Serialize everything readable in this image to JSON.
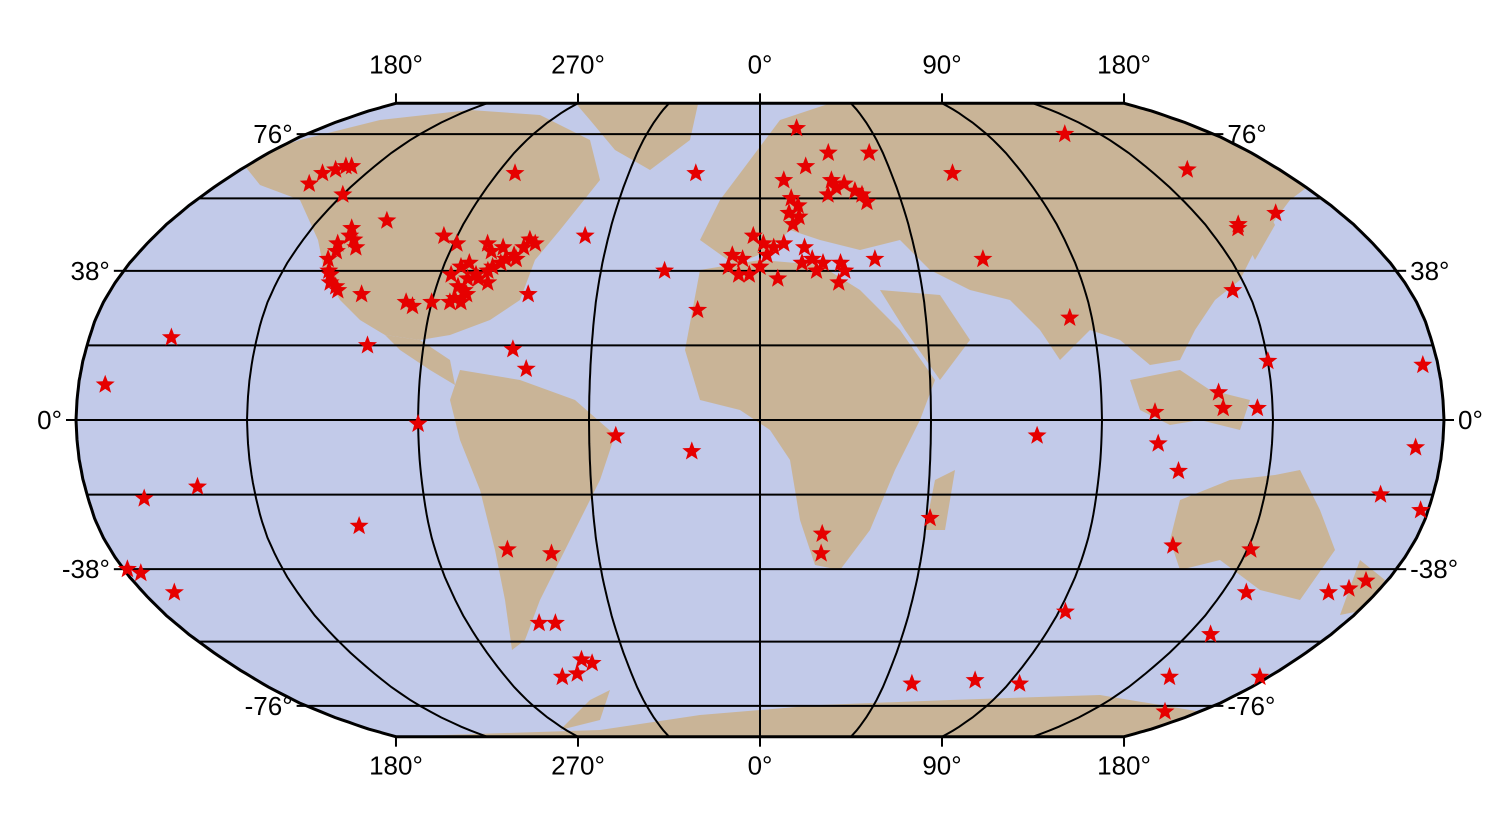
{
  "map": {
    "projection": "Robinson",
    "colors": {
      "ocean": "#c2cae9",
      "land": "#c9b497",
      "graticule": "#000000",
      "marker": "#e60000",
      "frame": "#000000"
    },
    "marker_shape": "star-icon",
    "top_labels": [
      "180°",
      "270°",
      "0°",
      "90°",
      "180°"
    ],
    "bottom_labels": [
      "180°",
      "270°",
      "0°",
      "90°",
      "180°"
    ],
    "left_labels": [
      "76°",
      "38°",
      "0°",
      "-38°",
      "-76°"
    ],
    "right_labels": [
      "76°",
      "38°",
      "0°",
      "-38°",
      "-76°"
    ],
    "stations": [
      {
        "lon": -150,
        "lat": 64
      },
      {
        "lon": -147,
        "lat": 65
      },
      {
        "lon": -145,
        "lat": 66
      },
      {
        "lon": -143,
        "lat": 66
      },
      {
        "lon": -150,
        "lat": 61
      },
      {
        "lon": -135,
        "lat": 58
      },
      {
        "lon": -123,
        "lat": 49
      },
      {
        "lon": -122,
        "lat": 47
      },
      {
        "lon": -124,
        "lat": 45
      },
      {
        "lon": -123,
        "lat": 43
      },
      {
        "lon": -124,
        "lat": 41
      },
      {
        "lon": -122,
        "lat": 38
      },
      {
        "lon": -121,
        "lat": 37
      },
      {
        "lon": -120,
        "lat": 35
      },
      {
        "lon": -118,
        "lat": 34
      },
      {
        "lon": -117,
        "lat": 33
      },
      {
        "lon": -114,
        "lat": 51
      },
      {
        "lon": -120,
        "lat": 46
      },
      {
        "lon": -118,
        "lat": 44
      },
      {
        "lon": -110,
        "lat": 32
      },
      {
        "lon": -84,
        "lat": 64
      },
      {
        "lon": -94,
        "lat": 47
      },
      {
        "lon": -89,
        "lat": 45
      },
      {
        "lon": -80,
        "lat": 45
      },
      {
        "lon": -78,
        "lat": 43
      },
      {
        "lon": -75,
        "lat": 44
      },
      {
        "lon": -73,
        "lat": 41
      },
      {
        "lon": -74,
        "lat": 40
      },
      {
        "lon": -71,
        "lat": 42
      },
      {
        "lon": -76,
        "lat": 39
      },
      {
        "lon": -77,
        "lat": 38
      },
      {
        "lon": -80,
        "lat": 37
      },
      {
        "lon": -82,
        "lat": 36
      },
      {
        "lon": -79,
        "lat": 36
      },
      {
        "lon": -84,
        "lat": 34
      },
      {
        "lon": -82,
        "lat": 33
      },
      {
        "lon": -81,
        "lat": 32
      },
      {
        "lon": -82,
        "lat": 30
      },
      {
        "lon": -85,
        "lat": 30
      },
      {
        "lon": -84,
        "lat": 31
      },
      {
        "lon": -90,
        "lat": 30
      },
      {
        "lon": -97,
        "lat": 30
      },
      {
        "lon": -95,
        "lat": 29
      },
      {
        "lon": -69,
        "lat": 44
      },
      {
        "lon": -68,
        "lat": 46
      },
      {
        "lon": -66,
        "lat": 45
      },
      {
        "lon": -70,
        "lat": 41
      },
      {
        "lon": -85,
        "lat": 39
      },
      {
        "lon": -87,
        "lat": 37
      },
      {
        "lon": -83,
        "lat": 40
      },
      {
        "lon": -76,
        "lat": 35
      },
      {
        "lon": -64,
        "lat": 32
      },
      {
        "lon": -52,
        "lat": 47
      },
      {
        "lon": -66,
        "lat": 18
      },
      {
        "lon": -62,
        "lat": 13
      },
      {
        "lon": -105,
        "lat": 19
      },
      {
        "lon": -158,
        "lat": 21
      },
      {
        "lon": -150,
        "lat": -17
      },
      {
        "lon": -171,
        "lat": -44
      },
      {
        "lon": -109,
        "lat": -27
      },
      {
        "lon": -90,
        "lat": -1
      },
      {
        "lon": -70,
        "lat": -33
      },
      {
        "lon": -58,
        "lat": -34
      },
      {
        "lon": -68,
        "lat": -52
      },
      {
        "lon": -63,
        "lat": -52
      },
      {
        "lon": -60,
        "lat": -62
      },
      {
        "lon": -57,
        "lat": -63
      },
      {
        "lon": -38,
        "lat": -4
      },
      {
        "lon": -18,
        "lat": -8
      },
      {
        "lon": -27,
        "lat": 38
      },
      {
        "lon": -17,
        "lat": 28
      },
      {
        "lon": -22,
        "lat": 64
      },
      {
        "lon": 15,
        "lat": 78
      },
      {
        "lon": 25,
        "lat": 70
      },
      {
        "lon": 40,
        "lat": 70
      },
      {
        "lon": 16,
        "lat": 66
      },
      {
        "lon": 8,
        "lat": 62
      },
      {
        "lon": 24,
        "lat": 62
      },
      {
        "lon": 28,
        "lat": 61
      },
      {
        "lon": 25,
        "lat": 60
      },
      {
        "lon": 31,
        "lat": 59
      },
      {
        "lon": 22,
        "lat": 58
      },
      {
        "lon": 33,
        "lat": 58
      },
      {
        "lon": 34,
        "lat": 56
      },
      {
        "lon": 10,
        "lat": 57
      },
      {
        "lon": 12,
        "lat": 55
      },
      {
        "lon": 9,
        "lat": 53
      },
      {
        "lon": 12,
        "lat": 52
      },
      {
        "lon": 10,
        "lat": 50
      },
      {
        "lon": -2,
        "lat": 47
      },
      {
        "lon": 1,
        "lat": 45
      },
      {
        "lon": 4,
        "lat": 44
      },
      {
        "lon": 7,
        "lat": 45
      },
      {
        "lon": 13,
        "lat": 44
      },
      {
        "lon": 15,
        "lat": 41
      },
      {
        "lon": 12,
        "lat": 40
      },
      {
        "lon": 18,
        "lat": 40
      },
      {
        "lon": 16,
        "lat": 38
      },
      {
        "lon": 23,
        "lat": 40
      },
      {
        "lon": 24,
        "lat": 38
      },
      {
        "lon": 22,
        "lat": 35
      },
      {
        "lon": 33,
        "lat": 41
      },
      {
        "lon": -9,
        "lat": 39
      },
      {
        "lon": -6,
        "lat": 37
      },
      {
        "lon": -3,
        "lat": 37
      },
      {
        "lon": 0,
        "lat": 39
      },
      {
        "lon": -5,
        "lat": 41
      },
      {
        "lon": -8,
        "lat": 42
      },
      {
        "lon": 2,
        "lat": 42
      },
      {
        "lon": 5,
        "lat": 36
      },
      {
        "lon": 66,
        "lat": 64
      },
      {
        "lon": 64,
        "lat": 41
      },
      {
        "lon": 84,
        "lat": 26
      },
      {
        "lon": 121,
        "lat": 76
      },
      {
        "lon": 148,
        "lat": 65
      },
      {
        "lon": 160,
        "lat": 53
      },
      {
        "lon": 145,
        "lat": 50
      },
      {
        "lon": 144,
        "lat": 49
      },
      {
        "lon": 131,
        "lat": 33
      },
      {
        "lon": 135,
        "lat": 15
      },
      {
        "lon": 121,
        "lat": 7
      },
      {
        "lon": 122,
        "lat": 3
      },
      {
        "lon": 131,
        "lat": 3
      },
      {
        "lon": 176,
        "lat": 14
      },
      {
        "lon": -173,
        "lat": 9
      },
      {
        "lon": 104,
        "lat": 2
      },
      {
        "lon": 73,
        "lat": -4
      },
      {
        "lon": 105,
        "lat": -6
      },
      {
        "lon": 111,
        "lat": -13
      },
      {
        "lon": 173,
        "lat": -7
      },
      {
        "lon": 166,
        "lat": -19
      },
      {
        "lon": -165,
        "lat": -20
      },
      {
        "lon": 178,
        "lat": -23
      },
      {
        "lon": 136,
        "lat": -33
      },
      {
        "lon": 114,
        "lat": -32
      },
      {
        "lon": 17,
        "lat": -29
      },
      {
        "lon": 46,
        "lat": -25
      },
      {
        "lon": 17,
        "lat": -34
      },
      {
        "lon": 92,
        "lat": -49
      },
      {
        "lon": 166,
        "lat": -44
      },
      {
        "lon": 174,
        "lat": -41
      },
      {
        "lon": 171,
        "lat": -43
      },
      {
        "lon": -179,
        "lat": -38
      },
      {
        "lon": -176,
        "lat": -39
      },
      {
        "lon": 142,
        "lat": -44
      },
      {
        "lon": 142,
        "lat": -55
      },
      {
        "lon": 55,
        "lat": -69
      },
      {
        "lon": 77,
        "lat": -68
      },
      {
        "lon": 94,
        "lat": -69
      },
      {
        "lon": 145,
        "lat": -67
      },
      {
        "lon": 177,
        "lat": -67
      },
      {
        "lon": 166,
        "lat": -78
      },
      {
        "lon": -70,
        "lat": -67
      },
      {
        "lon": -64,
        "lat": -66
      }
    ]
  }
}
